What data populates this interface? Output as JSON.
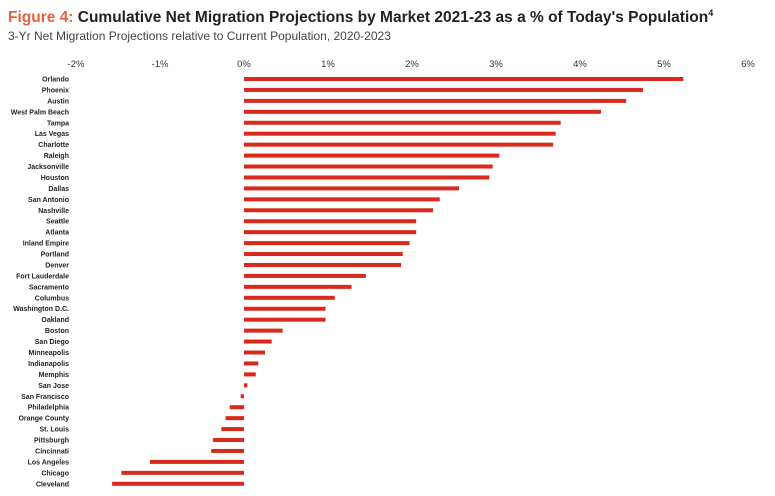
{
  "header": {
    "figure_label": "Figure 4:",
    "title": "Cumulative Net Migration Projections by Market 2021-23 as a % of Today's Population",
    "footnote_mark": "4",
    "subtitle": "3-Yr Net Migration Projections relative to Current Population, 2020-2023"
  },
  "chart_data": {
    "type": "bar",
    "orientation": "horizontal",
    "title": "Cumulative Net Migration Projections by Market 2021-23 as a % of Today's Population",
    "subtitle": "3-Yr Net Migration Projections relative to Current Population, 2020-2023",
    "bar_color": "#d8291c",
    "xlim": [
      -2,
      6
    ],
    "x_ticks": [
      -2,
      -1,
      0,
      1,
      2,
      3,
      4,
      5,
      6
    ],
    "x_tick_labels": [
      "-2%",
      "-1%",
      "0%",
      "1%",
      "2%",
      "3%",
      "4%",
      "5%",
      "6%"
    ],
    "axis_position": "top",
    "grid": false,
    "categories": [
      "Orlando",
      "Phoenix",
      "Austin",
      "West Palm Beach",
      "Tampa",
      "Las Vegas",
      "Charlotte",
      "Raleigh",
      "Jacksonville",
      "Houston",
      "Dallas",
      "San Antonio",
      "Nashville",
      "Seattle",
      "Atlanta",
      "Inland Empire",
      "Portland",
      "Denver",
      "Fort Lauderdale",
      "Sacramento",
      "Columbus",
      "Washington D.C.",
      "Oakland",
      "Boston",
      "San Diego",
      "Minneapolis",
      "Indianapolis",
      "Memphis",
      "San Jose",
      "San Francisco",
      "Philadelphia",
      "Orange County",
      "St. Louis",
      "Pittsburgh",
      "Cincinnati",
      "Los Angeles",
      "Chicago",
      "Cleveland"
    ],
    "values": [
      5.23,
      4.75,
      4.55,
      4.25,
      3.77,
      3.71,
      3.68,
      3.04,
      2.96,
      2.92,
      2.56,
      2.33,
      2.25,
      2.05,
      2.05,
      1.97,
      1.89,
      1.87,
      1.45,
      1.28,
      1.08,
      0.97,
      0.97,
      0.46,
      0.33,
      0.25,
      0.17,
      0.14,
      0.04,
      -0.04,
      -0.17,
      -0.22,
      -0.27,
      -0.37,
      -0.39,
      -1.12,
      -1.46,
      -1.57
    ]
  }
}
